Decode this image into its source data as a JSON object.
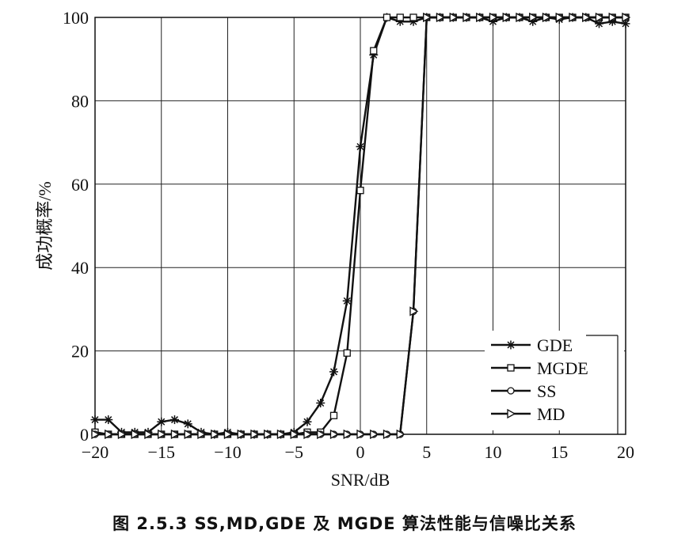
{
  "caption": "图 2.5.3   SS,MD,GDE 及 MGDE 算法性能与信噪比关系",
  "chart_data": {
    "type": "line",
    "xlabel": "SNR/dB",
    "ylabel": "成功概率/%",
    "xlim": [
      -20,
      20
    ],
    "ylim": [
      0,
      100
    ],
    "xticks": [
      -20,
      -15,
      -10,
      -5,
      0,
      5,
      10,
      15,
      20
    ],
    "yticks": [
      0,
      20,
      40,
      60,
      80,
      100
    ],
    "grid": true,
    "legend_position": "bottom-right",
    "series": [
      {
        "name": "GDE",
        "marker": "star",
        "points": [
          [
            -20,
            3.5
          ],
          [
            -19,
            3.5
          ],
          [
            -18,
            0.5
          ],
          [
            -17,
            0.5
          ],
          [
            -16,
            0.5
          ],
          [
            -15,
            3
          ],
          [
            -14,
            3.5
          ],
          [
            -13,
            2.5
          ],
          [
            -12,
            0.5
          ],
          [
            -11,
            0
          ],
          [
            -10,
            0.5
          ],
          [
            -9,
            0
          ],
          [
            -8,
            0
          ],
          [
            -7,
            0
          ],
          [
            -6,
            0
          ],
          [
            -5,
            0.5
          ],
          [
            -4,
            3
          ],
          [
            -3,
            7.5
          ],
          [
            -2,
            15
          ],
          [
            -1,
            32
          ],
          [
            0,
            69
          ],
          [
            1,
            91
          ],
          [
            2,
            100
          ],
          [
            3,
            99
          ],
          [
            4,
            99
          ],
          [
            5,
            100
          ],
          [
            6,
            100
          ],
          [
            7,
            100
          ],
          [
            8,
            100
          ],
          [
            9,
            100
          ],
          [
            10,
            99
          ],
          [
            11,
            100
          ],
          [
            12,
            100
          ],
          [
            13,
            99
          ],
          [
            14,
            100
          ],
          [
            15,
            99.5
          ],
          [
            16,
            100
          ],
          [
            17,
            100
          ],
          [
            18,
            98.5
          ],
          [
            19,
            99
          ],
          [
            20,
            98.5
          ]
        ]
      },
      {
        "name": "MGDE",
        "marker": "square",
        "points": [
          [
            -20,
            0.5
          ],
          [
            -19,
            0
          ],
          [
            -18,
            0
          ],
          [
            -17,
            0
          ],
          [
            -16,
            0
          ],
          [
            -15,
            0
          ],
          [
            -14,
            0
          ],
          [
            -13,
            0
          ],
          [
            -12,
            0
          ],
          [
            -11,
            0
          ],
          [
            -10,
            0
          ],
          [
            -9,
            0
          ],
          [
            -8,
            0
          ],
          [
            -7,
            0
          ],
          [
            -6,
            0
          ],
          [
            -5,
            0
          ],
          [
            -4,
            0.5
          ],
          [
            -3,
            0.5
          ],
          [
            -2,
            4.5
          ],
          [
            -1,
            19.5
          ],
          [
            0,
            58.5
          ],
          [
            1,
            92
          ],
          [
            2,
            100
          ],
          [
            3,
            100
          ],
          [
            4,
            100
          ],
          [
            5,
            100
          ],
          [
            6,
            100
          ],
          [
            7,
            100
          ],
          [
            8,
            100
          ],
          [
            9,
            100
          ],
          [
            10,
            100
          ],
          [
            11,
            100
          ],
          [
            12,
            100
          ],
          [
            13,
            100
          ],
          [
            14,
            100
          ],
          [
            15,
            100
          ],
          [
            16,
            100
          ],
          [
            17,
            100
          ],
          [
            18,
            100
          ],
          [
            19,
            100
          ],
          [
            20,
            100
          ]
        ]
      },
      {
        "name": "SS",
        "marker": "circle",
        "points": [
          [
            -20,
            0
          ],
          [
            -19,
            0
          ],
          [
            -18,
            0
          ],
          [
            -17,
            0
          ],
          [
            -16,
            0
          ],
          [
            -15,
            0
          ],
          [
            -14,
            0
          ],
          [
            -13,
            0
          ],
          [
            -12,
            0
          ],
          [
            -11,
            0
          ],
          [
            -10,
            0
          ],
          [
            -9,
            0
          ],
          [
            -8,
            0
          ],
          [
            -7,
            0
          ],
          [
            -6,
            0
          ],
          [
            -5,
            0
          ],
          [
            -4,
            0
          ],
          [
            -3,
            0
          ],
          [
            -2,
            0
          ],
          [
            -1,
            0
          ],
          [
            0,
            0
          ],
          [
            1,
            0
          ],
          [
            2,
            0
          ],
          [
            3,
            0
          ],
          [
            4,
            29.5
          ],
          [
            5,
            100
          ],
          [
            6,
            100
          ],
          [
            7,
            100
          ],
          [
            8,
            100
          ],
          [
            9,
            100
          ],
          [
            10,
            100
          ],
          [
            11,
            100
          ],
          [
            12,
            100
          ],
          [
            13,
            100
          ],
          [
            14,
            100
          ],
          [
            15,
            100
          ],
          [
            16,
            100
          ],
          [
            17,
            100
          ],
          [
            18,
            100
          ],
          [
            19,
            100
          ],
          [
            20,
            100
          ]
        ]
      },
      {
        "name": "MD",
        "marker": "triangle-right",
        "points": [
          [
            -20,
            0
          ],
          [
            -19,
            0
          ],
          [
            -18,
            0
          ],
          [
            -17,
            0
          ],
          [
            -16,
            0
          ],
          [
            -15,
            0
          ],
          [
            -14,
            0
          ],
          [
            -13,
            0
          ],
          [
            -12,
            0
          ],
          [
            -11,
            0
          ],
          [
            -10,
            0
          ],
          [
            -9,
            0
          ],
          [
            -8,
            0
          ],
          [
            -7,
            0
          ],
          [
            -6,
            0
          ],
          [
            -5,
            0
          ],
          [
            -4,
            0
          ],
          [
            -3,
            0
          ],
          [
            -2,
            0
          ],
          [
            -1,
            0
          ],
          [
            0,
            0
          ],
          [
            1,
            0
          ],
          [
            2,
            0
          ],
          [
            3,
            0
          ],
          [
            4,
            29.5
          ],
          [
            5,
            100
          ],
          [
            6,
            100
          ],
          [
            7,
            100
          ],
          [
            8,
            100
          ],
          [
            9,
            100
          ],
          [
            10,
            100
          ],
          [
            11,
            100
          ],
          [
            12,
            100
          ],
          [
            13,
            100
          ],
          [
            14,
            100
          ],
          [
            15,
            100
          ],
          [
            16,
            100
          ],
          [
            17,
            100
          ],
          [
            18,
            100
          ],
          [
            19,
            100
          ],
          [
            20,
            100
          ]
        ]
      }
    ]
  }
}
